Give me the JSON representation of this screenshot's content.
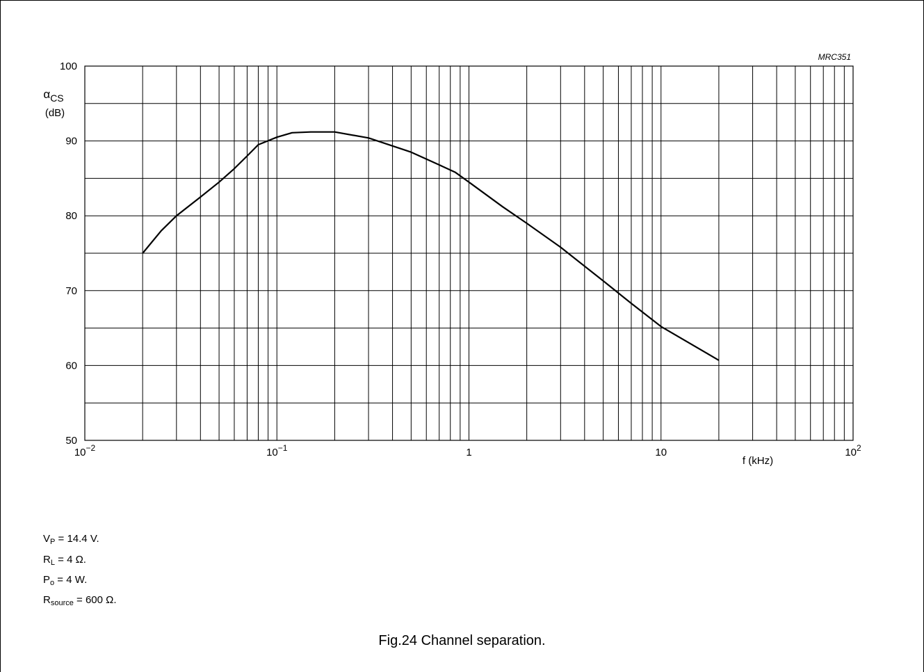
{
  "chart_data": {
    "type": "line",
    "code": "MRC351",
    "ylabel_symbol": "α",
    "ylabel_sub": "CS",
    "ylabel_unit": "(dB)",
    "xlabel": "f (kHz)",
    "x_scale": "log",
    "xlim": [
      0.01,
      100
    ],
    "ylim": [
      50,
      100
    ],
    "y_ticks": [
      50,
      60,
      70,
      80,
      90,
      100
    ],
    "x_ticks": [
      {
        "value": 0.01,
        "base": "10",
        "exp": "−2"
      },
      {
        "value": 0.1,
        "base": "10",
        "exp": "−1"
      },
      {
        "value": 1,
        "base": "1",
        "exp": ""
      },
      {
        "value": 10,
        "base": "10",
        "exp": ""
      },
      {
        "value": 100,
        "base": "10",
        "exp": "2"
      }
    ],
    "grid": true,
    "series": [
      {
        "x": [
          0.02,
          0.025,
          0.03,
          0.04,
          0.05,
          0.06,
          0.07,
          0.08,
          0.1,
          0.12,
          0.15,
          0.2,
          0.3,
          0.5,
          0.7,
          0.85,
          1.0,
          1.5,
          2,
          3,
          5,
          7,
          10,
          20
        ],
        "y": [
          75,
          78,
          80,
          82.5,
          84.5,
          86.3,
          88,
          89.5,
          90.5,
          91.1,
          91.2,
          91.2,
          90.4,
          88.5,
          86.8,
          85.8,
          84.5,
          81.2,
          79,
          75.8,
          71.3,
          68.3,
          65.2,
          60.7
        ]
      }
    ]
  },
  "conditions": [
    {
      "main": "V",
      "sub": "P",
      "rest": " = 14.4 V."
    },
    {
      "main": "R",
      "sub": "L",
      "rest": " = 4 Ω."
    },
    {
      "main": "P",
      "sub": "o",
      "rest": " = 4 W."
    },
    {
      "main": "R",
      "sub": "source",
      "rest": " = 600 Ω."
    }
  ],
  "caption": "Fig.24  Channel separation."
}
